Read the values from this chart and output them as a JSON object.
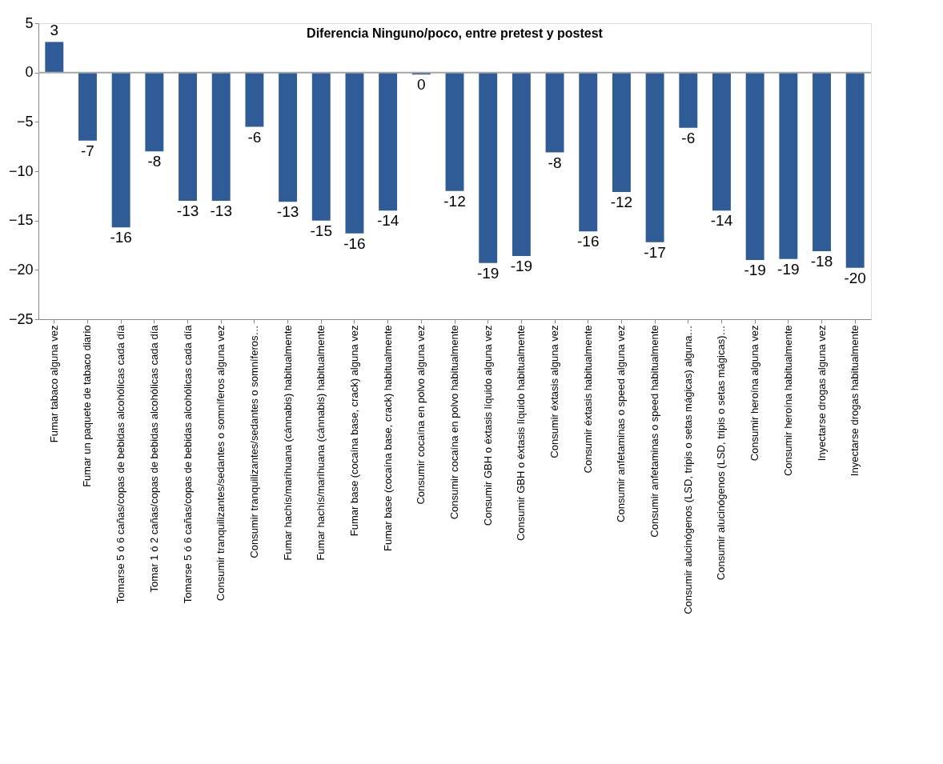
{
  "chart_data": {
    "type": "bar",
    "title": "Diferencia Ninguno/poco, entre pretest y postest",
    "categories": [
      "Fumar tabaco alguna vez",
      "Fumar un paquete de tabaco diario",
      "Tomarse 5 ó 6 cañas/copas de bebidas alcohólicas cada día",
      "Tomar 1 ó 2 cañas/copas de bebidas alcohólicas cada día",
      "Tomarse 5 ó 6 cañas/copas de bebidas alcohólicas cada día",
      "Consumir tranquilizantes/sedantes o somníferos alguna vez",
      "Consumir tranquilizantes/sedantes o somníferos…",
      "Fumar hachís/marihuana (cánnabis) habitualmente",
      "Fumar hachís/marihuana (cánnabis) habitualmente",
      "Fumar base (cocaína base, crack) alguna vez",
      "Fumar base (cocaína base, crack) habitualmente",
      "Consumir cocaína en polvo alguna vez",
      "Consumir cocaína en polvo habitualmente",
      "Consumir GBH o éxtasis líquido alguna vez",
      "Consumir GBH o éxtasis líquido habitualmente",
      "Consumir éxtasis alguna vez",
      "Consumir éxtasis habitualmente",
      "Consumir anfetaminas o speed alguna vez",
      "Consumir anfetaminas o speed habitualmente",
      "Consumir alucinógenos (LSD, tripis o setas mágicas) alguna…",
      "Consumir alucinógenos (LSD, tripis o setas mágicas)…",
      "Consumir heroína alguna vez",
      "Consumir heroína habitualmente",
      "Inyectarse drogas alguna vez",
      "Inyectarse drogas habitualmente"
    ],
    "values": [
      3.1,
      -6.9,
      -15.7,
      -8,
      -13,
      -13,
      -5.5,
      -13.1,
      -15,
      -16.3,
      -14,
      -0.2,
      -12,
      -19.3,
      -18.6,
      -8.1,
      -16.1,
      -12.1,
      -17.2,
      -5.6,
      -14,
      -19,
      -18.9,
      -18.1,
      -19.8
    ],
    "value_labels": [
      "3",
      "-7",
      "-16",
      "-8",
      "-13",
      "-13",
      "-6",
      "-13",
      "-15",
      "-16",
      "-14",
      "0",
      "-12",
      "-19",
      "-19",
      "-8",
      "-16",
      "-12",
      "-17",
      "-6",
      "-14",
      "-19",
      "-19",
      "-18",
      "-20"
    ],
    "color": "#2f5c97",
    "ylim": [
      -25,
      5
    ],
    "yticks": [
      -25,
      -20,
      -15,
      -10,
      -5,
      0,
      5
    ],
    "grid": false,
    "ref_lines": [
      {
        "axis": "y",
        "value": 0,
        "label": null,
        "color": "#a6a6a6"
      }
    ]
  }
}
